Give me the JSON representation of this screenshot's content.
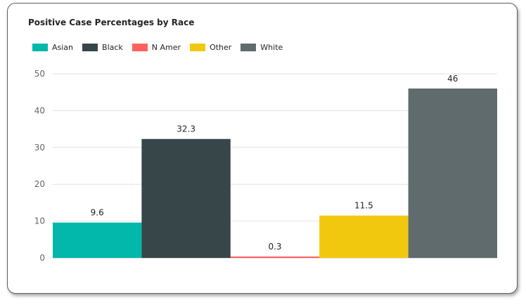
{
  "chart_data": {
    "type": "bar",
    "title": "Positive Case Percentages by Race",
    "categories": [
      "Asian",
      "Black",
      "N Amer",
      "Other",
      "White"
    ],
    "values": [
      9.6,
      32.3,
      0.3,
      11.5,
      46
    ],
    "data_labels": [
      "9.6",
      "32.3",
      "0.3",
      "11.5",
      "46"
    ],
    "colors": [
      "#01B8AA",
      "#374649",
      "#FD625E",
      "#F2C80F",
      "#5F6B6D"
    ],
    "ylim": [
      0,
      50
    ],
    "yticks": [
      0,
      10,
      20,
      30,
      40,
      50
    ],
    "grid": true,
    "legend_position": "top-left",
    "xlabel": "",
    "ylabel": ""
  }
}
